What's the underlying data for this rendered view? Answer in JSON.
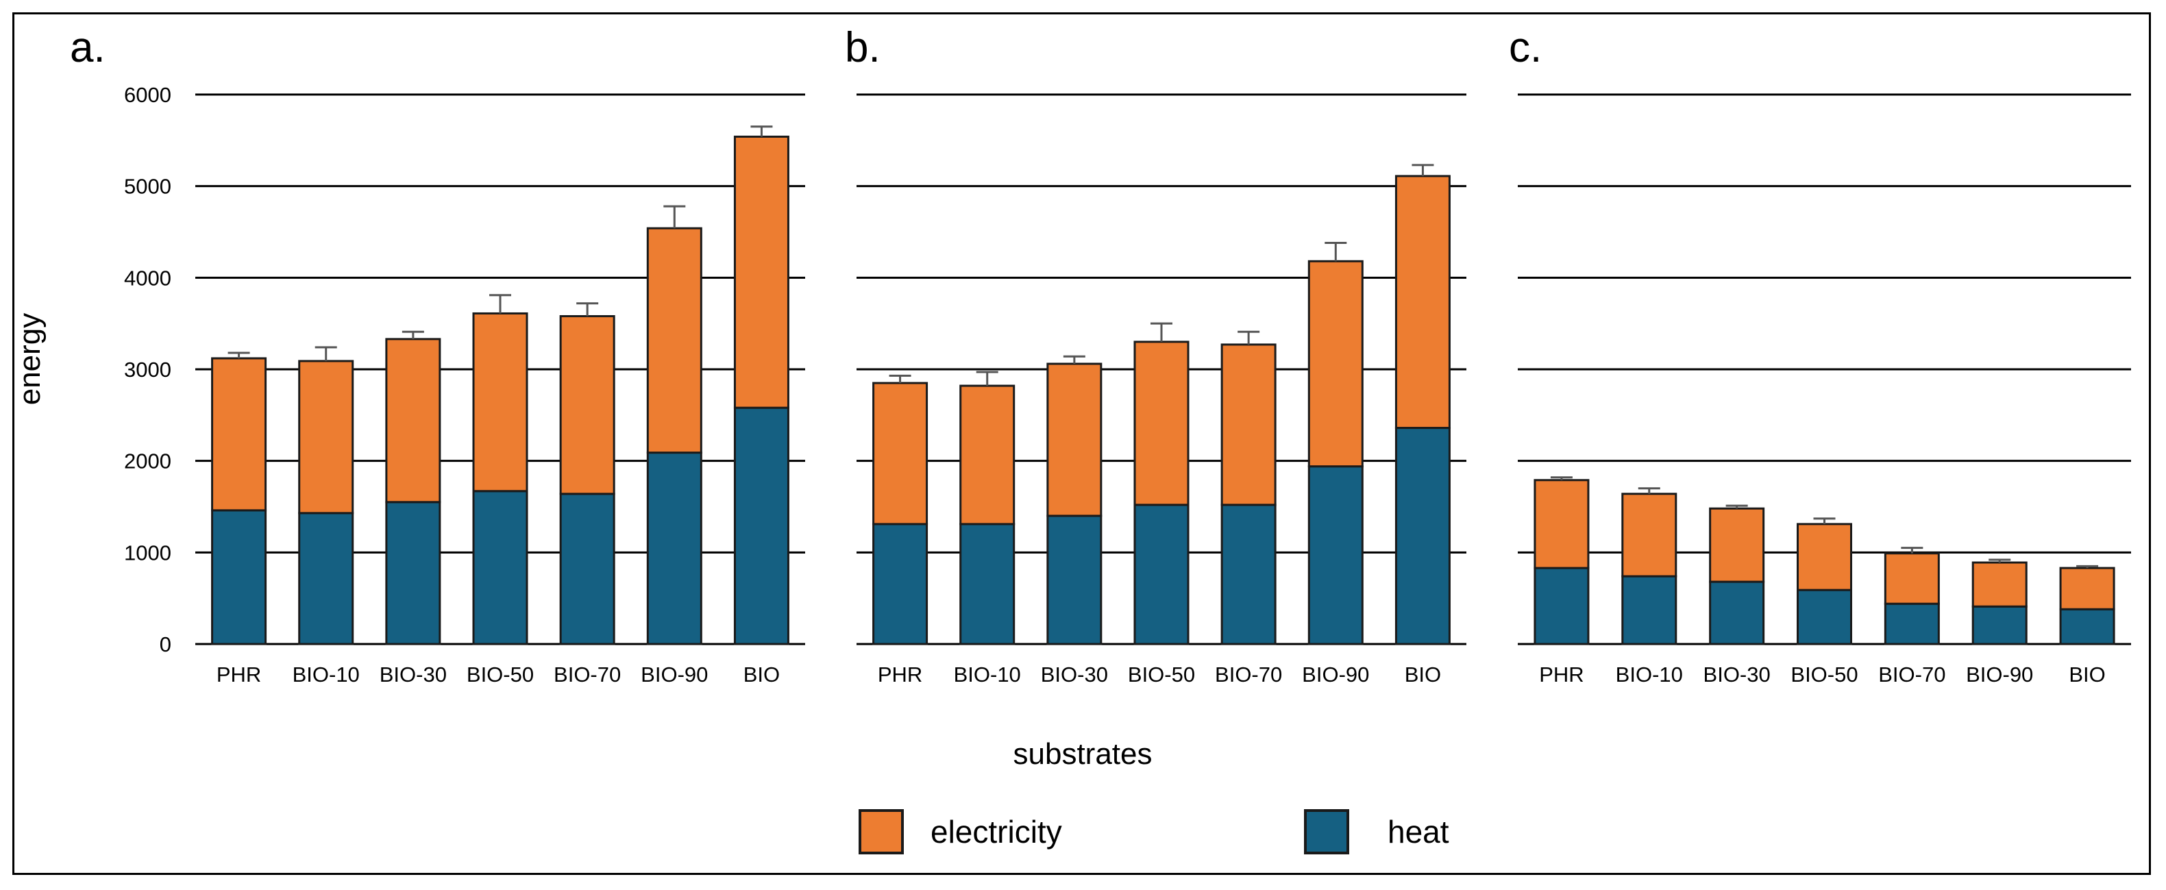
{
  "chart_data": {
    "type": "bar",
    "stacked": true,
    "ylabel": "energy",
    "xlabel": "substrates",
    "ylim": [
      0,
      6000
    ],
    "yticks": [
      0,
      1000,
      2000,
      3000,
      4000,
      5000,
      6000
    ],
    "grid": "horizontal",
    "legend_position": "bottom-center",
    "legend": [
      {
        "name": "electricity",
        "color": "#ED7D31"
      },
      {
        "name": "heat",
        "color": "#156082"
      }
    ],
    "categories": [
      "PHR",
      "BIO-10",
      "BIO-30",
      "BIO-50",
      "BIO-70",
      "BIO-90",
      "BIO"
    ],
    "panels": [
      {
        "label": "a.",
        "series": [
          {
            "name": "heat",
            "values": [
              1460,
              1430,
              1550,
              1670,
              1640,
              2090,
              2580
            ]
          },
          {
            "name": "electricity",
            "values": [
              1660,
              1660,
              1780,
              1940,
              1940,
              2450,
              2960
            ]
          }
        ],
        "totals": [
          3120,
          3090,
          3330,
          3610,
          3580,
          4540,
          5540
        ],
        "errors": [
          60,
          150,
          80,
          200,
          140,
          240,
          110
        ]
      },
      {
        "label": "b.",
        "series": [
          {
            "name": "heat",
            "values": [
              1310,
              1310,
              1400,
              1520,
              1520,
              1940,
              2360
            ]
          },
          {
            "name": "electricity",
            "values": [
              1540,
              1510,
              1660,
              1780,
              1750,
              2240,
              2750
            ]
          }
        ],
        "totals": [
          2850,
          2820,
          3060,
          3300,
          3270,
          4180,
          5110
        ],
        "errors": [
          80,
          150,
          80,
          200,
          140,
          200,
          120
        ]
      },
      {
        "label": "c.",
        "series": [
          {
            "name": "heat",
            "values": [
              830,
              740,
              680,
              590,
              440,
              410,
              380
            ]
          },
          {
            "name": "electricity",
            "values": [
              960,
              900,
              800,
              720,
              550,
              480,
              450
            ]
          }
        ],
        "totals": [
          1790,
          1640,
          1480,
          1310,
          990,
          890,
          830
        ],
        "errors": [
          30,
          60,
          30,
          60,
          60,
          30,
          20
        ]
      }
    ]
  },
  "colors": {
    "electricity": "#ED7D31",
    "heat": "#156082",
    "bar_border": "#1a1a1a",
    "grid": "#000000",
    "error_bar": "#555555"
  }
}
